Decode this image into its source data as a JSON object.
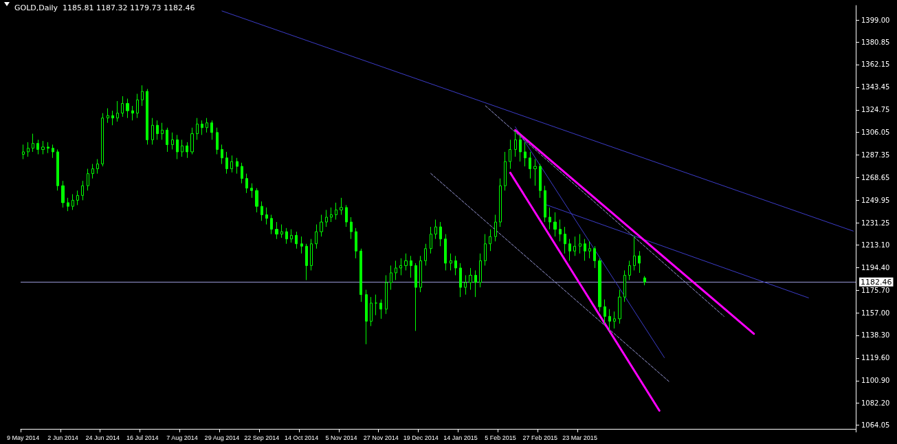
{
  "chart_data": {
    "type": "candlestick",
    "title": "GOLD,Daily  1185.81 1187.32 1179.73 1182.46",
    "categories": [
      "9 May 2014",
      null,
      null,
      null,
      null,
      null,
      null,
      null,
      "2 Jun 2014",
      null,
      null,
      null,
      null,
      null,
      null,
      null,
      "24 Jun 2014",
      null,
      null,
      null,
      null,
      null,
      null,
      null,
      "16 Jul 2014",
      null,
      null,
      null,
      null,
      null,
      null,
      null,
      "7 Aug 2014",
      null,
      null,
      null,
      null,
      null,
      null,
      null,
      "29 Aug 2014",
      null,
      null,
      null,
      null,
      null,
      null,
      null,
      "22 Sep 2014",
      null,
      null,
      null,
      null,
      null,
      null,
      null,
      "14 Oct 2014",
      null,
      null,
      null,
      null,
      null,
      null,
      null,
      "5 Nov 2014",
      null,
      null,
      null,
      null,
      null,
      null,
      null,
      "27 Nov 2014",
      null,
      null,
      null,
      null,
      null,
      null,
      null,
      "19 Dec 2014",
      null,
      null,
      null,
      null,
      null,
      null,
      null,
      "14 Jan 2015",
      null,
      null,
      null,
      null,
      null,
      null,
      null,
      "5 Feb 2015",
      null,
      null,
      null,
      null,
      null,
      null,
      null,
      "27 Feb 2015",
      null,
      null,
      null,
      null,
      null,
      null,
      null,
      "23 Mar 2015",
      null,
      null,
      null,
      null,
      null,
      null,
      null,
      null,
      null,
      null,
      null,
      null,
      null,
      null,
      null,
      null,
      null,
      null,
      null,
      null,
      null,
      null,
      null,
      null,
      null,
      null,
      null,
      null,
      null,
      null,
      null,
      null,
      null,
      null,
      null,
      null,
      null,
      null,
      null,
      null,
      null,
      null,
      null,
      null,
      null,
      null,
      null,
      null,
      null,
      null,
      null,
      null,
      null,
      null,
      null
    ],
    "ohlc": [
      [
        1288,
        1296,
        1284,
        1290
      ],
      [
        1290,
        1298,
        1286,
        1293
      ],
      [
        1293,
        1305,
        1290,
        1297
      ],
      [
        1297,
        1300,
        1288,
        1292
      ],
      [
        1292,
        1299,
        1288,
        1294
      ],
      [
        1294,
        1298,
        1289,
        1293
      ],
      [
        1293,
        1296,
        1285,
        1290
      ],
      [
        1290,
        1292,
        1258,
        1262
      ],
      [
        1262,
        1266,
        1244,
        1248
      ],
      [
        1248,
        1252,
        1241,
        1245
      ],
      [
        1245,
        1255,
        1242,
        1250
      ],
      [
        1250,
        1258,
        1246,
        1254
      ],
      [
        1254,
        1266,
        1250,
        1262
      ],
      [
        1262,
        1276,
        1258,
        1272
      ],
      [
        1272,
        1280,
        1268,
        1276
      ],
      [
        1276,
        1284,
        1272,
        1280
      ],
      [
        1280,
        1322,
        1278,
        1318
      ],
      [
        1318,
        1326,
        1314,
        1320
      ],
      [
        1320,
        1324,
        1312,
        1318
      ],
      [
        1318,
        1332,
        1315,
        1322
      ],
      [
        1322,
        1336,
        1319,
        1330
      ],
      [
        1330,
        1334,
        1318,
        1324
      ],
      [
        1324,
        1328,
        1316,
        1322
      ],
      [
        1322,
        1338,
        1318,
        1333
      ],
      [
        1333,
        1345,
        1328,
        1340
      ],
      [
        1340,
        1342,
        1296,
        1300
      ],
      [
        1300,
        1318,
        1296,
        1312
      ],
      [
        1312,
        1316,
        1300,
        1305
      ],
      [
        1305,
        1314,
        1300,
        1308
      ],
      [
        1308,
        1310,
        1290,
        1296
      ],
      [
        1296,
        1306,
        1292,
        1300
      ],
      [
        1300,
        1304,
        1284,
        1290
      ],
      [
        1290,
        1300,
        1286,
        1295
      ],
      [
        1295,
        1298,
        1285,
        1290
      ],
      [
        1290,
        1310,
        1288,
        1305
      ],
      [
        1305,
        1318,
        1300,
        1313
      ],
      [
        1313,
        1316,
        1304,
        1310
      ],
      [
        1310,
        1318,
        1306,
        1314
      ],
      [
        1314,
        1316,
        1300,
        1306
      ],
      [
        1306,
        1310,
        1288,
        1292
      ],
      [
        1292,
        1296,
        1280,
        1285
      ],
      [
        1285,
        1290,
        1272,
        1276
      ],
      [
        1276,
        1287,
        1273,
        1282
      ],
      [
        1282,
        1285,
        1272,
        1278
      ],
      [
        1278,
        1281,
        1264,
        1268
      ],
      [
        1268,
        1272,
        1256,
        1260
      ],
      [
        1260,
        1264,
        1252,
        1258
      ],
      [
        1258,
        1260,
        1240,
        1245
      ],
      [
        1245,
        1249,
        1233,
        1238
      ],
      [
        1238,
        1244,
        1230,
        1235
      ],
      [
        1235,
        1238,
        1222,
        1226
      ],
      [
        1226,
        1232,
        1218,
        1222
      ],
      [
        1222,
        1230,
        1219,
        1224
      ],
      [
        1224,
        1227,
        1214,
        1218
      ],
      [
        1218,
        1226,
        1215,
        1221
      ],
      [
        1221,
        1224,
        1210,
        1214
      ],
      [
        1214,
        1220,
        1206,
        1212
      ],
      [
        1212,
        1214,
        1184,
        1196
      ],
      [
        1196,
        1218,
        1192,
        1214
      ],
      [
        1214,
        1230,
        1210,
        1224
      ],
      [
        1224,
        1238,
        1220,
        1232
      ],
      [
        1232,
        1242,
        1228,
        1236
      ],
      [
        1236,
        1244,
        1232,
        1238
      ],
      [
        1238,
        1248,
        1234,
        1242
      ],
      [
        1242,
        1252,
        1238,
        1244
      ],
      [
        1244,
        1246,
        1228,
        1232
      ],
      [
        1232,
        1236,
        1218,
        1224
      ],
      [
        1224,
        1227,
        1202,
        1208
      ],
      [
        1208,
        1210,
        1166,
        1172
      ],
      [
        1172,
        1176,
        1131,
        1150
      ],
      [
        1150,
        1170,
        1146,
        1165
      ],
      [
        1165,
        1172,
        1155,
        1165
      ],
      [
        1165,
        1168,
        1152,
        1160
      ],
      [
        1160,
        1188,
        1156,
        1182
      ],
      [
        1182,
        1196,
        1176,
        1190
      ],
      [
        1190,
        1200,
        1184,
        1194
      ],
      [
        1194,
        1202,
        1188,
        1196
      ],
      [
        1196,
        1206,
        1192,
        1200
      ],
      [
        1200,
        1204,
        1186,
        1196
      ],
      [
        1196,
        1198,
        1142,
        1178
      ],
      [
        1178,
        1204,
        1174,
        1200
      ],
      [
        1200,
        1214,
        1196,
        1210
      ],
      [
        1210,
        1228,
        1206,
        1222
      ],
      [
        1222,
        1234,
        1218,
        1228
      ],
      [
        1228,
        1232,
        1212,
        1218
      ],
      [
        1218,
        1222,
        1192,
        1198
      ],
      [
        1198,
        1206,
        1192,
        1200
      ],
      [
        1200,
        1204,
        1188,
        1194
      ],
      [
        1194,
        1198,
        1170,
        1178
      ],
      [
        1178,
        1188,
        1172,
        1182
      ],
      [
        1182,
        1194,
        1176,
        1188
      ],
      [
        1188,
        1192,
        1170,
        1182
      ],
      [
        1182,
        1206,
        1178,
        1200
      ],
      [
        1200,
        1222,
        1196,
        1214
      ],
      [
        1214,
        1226,
        1208,
        1220
      ],
      [
        1220,
        1238,
        1216,
        1232
      ],
      [
        1232,
        1268,
        1228,
        1262
      ],
      [
        1262,
        1290,
        1258,
        1282
      ],
      [
        1282,
        1300,
        1276,
        1292
      ],
      [
        1292,
        1307,
        1286,
        1300
      ],
      [
        1300,
        1304,
        1282,
        1290
      ],
      [
        1290,
        1298,
        1278,
        1285
      ],
      [
        1285,
        1290,
        1268,
        1276
      ],
      [
        1276,
        1284,
        1262,
        1278
      ],
      [
        1278,
        1280,
        1252,
        1258
      ],
      [
        1258,
        1262,
        1232,
        1236
      ],
      [
        1236,
        1244,
        1226,
        1232
      ],
      [
        1232,
        1240,
        1220,
        1226
      ],
      [
        1226,
        1234,
        1216,
        1222
      ],
      [
        1222,
        1228,
        1206,
        1214
      ],
      [
        1214,
        1218,
        1200,
        1208
      ],
      [
        1208,
        1220,
        1204,
        1212
      ],
      [
        1212,
        1222,
        1206,
        1214
      ],
      [
        1214,
        1218,
        1200,
        1208
      ],
      [
        1208,
        1216,
        1202,
        1210
      ],
      [
        1210,
        1212,
        1194,
        1200
      ],
      [
        1200,
        1202,
        1158,
        1162
      ],
      [
        1162,
        1168,
        1148,
        1154
      ],
      [
        1154,
        1160,
        1142,
        1150
      ],
      [
        1150,
        1158,
        1144,
        1152
      ],
      [
        1152,
        1176,
        1148,
        1170
      ],
      [
        1170,
        1192,
        1166,
        1188
      ],
      [
        1188,
        1200,
        1184,
        1196
      ],
      [
        1196,
        1220,
        1192,
        1204
      ],
      [
        1204,
        1208,
        1190,
        1198
      ],
      [
        1185.81,
        1187.32,
        1179.73,
        1182.46
      ],
      null,
      null,
      null,
      null,
      null,
      null,
      null,
      null,
      null,
      null,
      null,
      null,
      null,
      null,
      null,
      null,
      null,
      null,
      null,
      null,
      null,
      null,
      null,
      null,
      null,
      null,
      null,
      null,
      null,
      null,
      null,
      null,
      null,
      null,
      null,
      null,
      null,
      null,
      null,
      null,
      null,
      null
    ],
    "color": "#00ff00",
    "series": [
      {
        "type": "line",
        "color": "#3c3cc8",
        "line_style": "solid",
        "values": [
          null,
          null,
          null,
          null,
          null,
          null,
          null,
          null,
          null,
          null,
          null,
          null,
          null,
          null,
          null,
          null,
          null,
          null,
          null,
          null,
          null,
          null,
          null,
          null,
          null,
          null,
          null,
          null,
          null,
          null,
          null,
          null,
          null,
          null,
          null,
          null,
          null,
          null,
          null,
          null,
          1406.5,
          null,
          null,
          null,
          null,
          null,
          null,
          null,
          null,
          null,
          null,
          null,
          null,
          null,
          null,
          null,
          null,
          null,
          null,
          null,
          null,
          null,
          null,
          null,
          null,
          null,
          null,
          null,
          null,
          null,
          null,
          null,
          null,
          null,
          null,
          null,
          null,
          null,
          null,
          null,
          null,
          null,
          null,
          null,
          null,
          null,
          null,
          null,
          null,
          null,
          null,
          null,
          null,
          null,
          null,
          null,
          null,
          null,
          null,
          null,
          null,
          null,
          null,
          null,
          null,
          null,
          null,
          null,
          null,
          null,
          null,
          null,
          null,
          null,
          null,
          null,
          null,
          null,
          null,
          null,
          null,
          null,
          null,
          null,
          null,
          null,
          null,
          null,
          null,
          null,
          null,
          null,
          null,
          null,
          null,
          null,
          null,
          null,
          null,
          null,
          null,
          null,
          null,
          null,
          null,
          null,
          null,
          null,
          null,
          null,
          null,
          null,
          null,
          null,
          null,
          null,
          null,
          null,
          null,
          null,
          null,
          null,
          null,
          null,
          null,
          null,
          null,
          1224.5
        ]
      },
      {
        "type": "line",
        "color": "#3c3cc8",
        "line_style": "solid",
        "values": [
          null,
          null,
          null,
          null,
          null,
          null,
          null,
          null,
          null,
          null,
          null,
          null,
          null,
          null,
          null,
          null,
          null,
          null,
          null,
          null,
          null,
          null,
          null,
          null,
          null,
          null,
          null,
          null,
          null,
          null,
          null,
          null,
          null,
          null,
          null,
          null,
          null,
          null,
          null,
          null,
          null,
          null,
          null,
          null,
          null,
          null,
          null,
          null,
          null,
          null,
          null,
          null,
          null,
          null,
          null,
          null,
          null,
          null,
          null,
          null,
          null,
          null,
          null,
          null,
          null,
          null,
          null,
          null,
          null,
          null,
          null,
          null,
          null,
          null,
          null,
          null,
          null,
          null,
          null,
          null,
          null,
          null,
          null,
          null,
          null,
          null,
          null,
          null,
          null,
          null,
          null,
          null,
          null,
          null,
          null,
          null,
          null,
          null,
          null,
          null,
          null,
          null,
          null,
          null,
          null,
          1246.6,
          null,
          null,
          null,
          null,
          null,
          null,
          null,
          null,
          null,
          null,
          null,
          null,
          null,
          null,
          null,
          null,
          null,
          null,
          null,
          null,
          null,
          null,
          null,
          null,
          null,
          null,
          null,
          null,
          null,
          null,
          null,
          null,
          null,
          null,
          null,
          null,
          null,
          null,
          null,
          null,
          null,
          null,
          null,
          null,
          null,
          null,
          null,
          null,
          null,
          null,
          null,
          null,
          1169.3,
          null,
          null,
          null,
          null,
          null,
          null,
          null,
          null,
          null
        ]
      },
      {
        "type": "line",
        "color": "#3c3cc8",
        "line_style": "solid",
        "values": [
          null,
          null,
          null,
          null,
          null,
          null,
          null,
          null,
          null,
          null,
          null,
          null,
          null,
          null,
          null,
          null,
          null,
          null,
          null,
          null,
          null,
          null,
          null,
          null,
          null,
          null,
          null,
          null,
          null,
          null,
          null,
          null,
          null,
          null,
          null,
          null,
          null,
          null,
          null,
          null,
          null,
          null,
          null,
          null,
          null,
          null,
          null,
          null,
          null,
          null,
          null,
          null,
          null,
          null,
          null,
          null,
          null,
          null,
          null,
          null,
          null,
          null,
          null,
          null,
          null,
          null,
          null,
          null,
          null,
          null,
          null,
          null,
          null,
          null,
          null,
          null,
          null,
          null,
          null,
          null,
          null,
          null,
          null,
          null,
          null,
          null,
          null,
          null,
          null,
          null,
          null,
          null,
          null,
          null,
          null,
          null,
          null,
          null,
          null,
          1310.7,
          null,
          null,
          null,
          null,
          null,
          null,
          null,
          null,
          null,
          null,
          null,
          null,
          null,
          null,
          null,
          null,
          null,
          null,
          null,
          null,
          null,
          null,
          null,
          null,
          null,
          null,
          null,
          null,
          null,
          1119.9,
          null,
          null,
          null,
          null,
          null,
          null,
          null,
          null,
          null,
          null,
          null,
          null,
          null,
          null,
          null,
          null,
          null,
          null,
          null,
          null,
          null,
          null,
          null,
          null,
          null,
          null,
          null,
          null,
          null,
          null,
          null,
          null,
          null,
          null,
          null,
          null,
          null,
          null
        ]
      },
      {
        "type": "line",
        "color": "#9a9ad8",
        "line_style": "dashed",
        "values": [
          null,
          null,
          null,
          null,
          null,
          null,
          null,
          null,
          null,
          null,
          null,
          null,
          null,
          null,
          null,
          null,
          null,
          null,
          null,
          null,
          null,
          null,
          null,
          null,
          null,
          null,
          null,
          null,
          null,
          null,
          null,
          null,
          null,
          null,
          null,
          null,
          null,
          null,
          null,
          null,
          null,
          null,
          null,
          null,
          null,
          null,
          null,
          null,
          null,
          null,
          null,
          null,
          null,
          null,
          null,
          null,
          null,
          null,
          null,
          null,
          null,
          null,
          null,
          null,
          null,
          null,
          null,
          null,
          null,
          null,
          null,
          null,
          null,
          null,
          null,
          null,
          null,
          null,
          null,
          null,
          null,
          null,
          null,
          null,
          null,
          null,
          null,
          null,
          null,
          null,
          null,
          null,
          null,
          1328.1,
          null,
          null,
          null,
          null,
          null,
          null,
          null,
          null,
          null,
          null,
          null,
          null,
          null,
          null,
          null,
          null,
          null,
          null,
          null,
          null,
          null,
          null,
          null,
          null,
          null,
          null,
          null,
          null,
          null,
          null,
          null,
          null,
          null,
          null,
          null,
          null,
          null,
          null,
          null,
          null,
          null,
          null,
          null,
          null,
          null,
          null,
          null,
          1154.0,
          null,
          null,
          null,
          null,
          null,
          null,
          null,
          null,
          null,
          null,
          null,
          null,
          null,
          null,
          null,
          null,
          null,
          null,
          null,
          null,
          null,
          null,
          null,
          null,
          null,
          null
        ]
      },
      {
        "type": "line",
        "color": "#9a9ad8",
        "line_style": "dashed",
        "values": [
          null,
          null,
          null,
          null,
          null,
          null,
          null,
          null,
          null,
          null,
          null,
          null,
          null,
          null,
          null,
          null,
          null,
          null,
          null,
          null,
          null,
          null,
          null,
          null,
          null,
          null,
          null,
          null,
          null,
          null,
          null,
          null,
          null,
          null,
          null,
          null,
          null,
          null,
          null,
          null,
          null,
          null,
          null,
          null,
          null,
          null,
          null,
          null,
          null,
          null,
          null,
          null,
          null,
          null,
          null,
          null,
          null,
          null,
          null,
          null,
          null,
          null,
          null,
          null,
          null,
          null,
          null,
          null,
          null,
          null,
          null,
          null,
          null,
          null,
          null,
          null,
          null,
          null,
          null,
          null,
          null,
          null,
          1272.2,
          null,
          null,
          null,
          null,
          null,
          null,
          null,
          null,
          null,
          null,
          null,
          null,
          null,
          null,
          null,
          null,
          null,
          null,
          null,
          null,
          null,
          null,
          null,
          null,
          null,
          null,
          null,
          null,
          null,
          null,
          null,
          null,
          null,
          null,
          null,
          null,
          null,
          null,
          null,
          null,
          null,
          null,
          null,
          null,
          null,
          null,
          null,
          1099.9,
          null,
          null,
          null,
          null,
          null,
          null,
          null,
          null,
          null,
          null,
          null,
          null,
          null,
          null,
          null,
          null,
          null,
          null,
          null,
          null,
          null,
          null,
          null,
          null,
          null,
          null,
          null,
          null,
          null,
          null,
          null,
          null,
          null,
          null,
          null,
          null,
          null
        ]
      },
      {
        "type": "line",
        "color": "#ff00ff",
        "line_style": "solid",
        "values": [
          null,
          null,
          null,
          null,
          null,
          null,
          null,
          null,
          null,
          null,
          null,
          null,
          null,
          null,
          null,
          null,
          null,
          null,
          null,
          null,
          null,
          null,
          null,
          null,
          null,
          null,
          null,
          null,
          null,
          null,
          null,
          null,
          null,
          null,
          null,
          null,
          null,
          null,
          null,
          null,
          null,
          null,
          null,
          null,
          null,
          null,
          null,
          null,
          null,
          null,
          null,
          null,
          null,
          null,
          null,
          null,
          null,
          null,
          null,
          null,
          null,
          null,
          null,
          null,
          null,
          null,
          null,
          null,
          null,
          null,
          null,
          null,
          null,
          null,
          null,
          null,
          null,
          null,
          null,
          null,
          null,
          null,
          null,
          null,
          null,
          null,
          null,
          null,
          null,
          null,
          null,
          null,
          null,
          null,
          null,
          null,
          null,
          null,
          null,
          1307.9,
          null,
          null,
          null,
          null,
          null,
          null,
          null,
          null,
          null,
          null,
          null,
          null,
          null,
          null,
          null,
          null,
          null,
          null,
          null,
          null,
          null,
          null,
          null,
          null,
          null,
          null,
          null,
          null,
          null,
          null,
          null,
          null,
          null,
          null,
          null,
          null,
          null,
          null,
          null,
          null,
          null,
          null,
          null,
          null,
          null,
          null,
          null,
          1139.6,
          null,
          null,
          null,
          null,
          null,
          null,
          null,
          null,
          null,
          null,
          null,
          null,
          null,
          null,
          null,
          null,
          null,
          null,
          null,
          null
        ]
      },
      {
        "type": "line",
        "color": "#ff00ff",
        "line_style": "solid",
        "values": [
          null,
          null,
          null,
          null,
          null,
          null,
          null,
          null,
          null,
          null,
          null,
          null,
          null,
          null,
          null,
          null,
          null,
          null,
          null,
          null,
          null,
          null,
          null,
          null,
          null,
          null,
          null,
          null,
          null,
          null,
          null,
          null,
          null,
          null,
          null,
          null,
          null,
          null,
          null,
          null,
          null,
          null,
          null,
          null,
          null,
          null,
          null,
          null,
          null,
          null,
          null,
          null,
          null,
          null,
          null,
          null,
          null,
          null,
          null,
          null,
          null,
          null,
          null,
          null,
          null,
          null,
          null,
          null,
          null,
          null,
          null,
          null,
          null,
          null,
          null,
          null,
          null,
          null,
          null,
          null,
          null,
          null,
          null,
          null,
          null,
          null,
          null,
          null,
          null,
          null,
          null,
          null,
          null,
          null,
          null,
          null,
          null,
          null,
          1272.7,
          null,
          null,
          null,
          null,
          null,
          null,
          null,
          null,
          null,
          null,
          null,
          null,
          null,
          null,
          null,
          null,
          null,
          null,
          null,
          null,
          null,
          null,
          null,
          null,
          null,
          null,
          null,
          null,
          null,
          1076.1,
          null,
          null,
          null,
          null,
          null,
          null,
          null,
          null,
          null,
          null,
          null,
          null,
          null,
          null,
          null,
          null,
          null,
          null,
          null,
          null,
          null,
          null,
          null,
          null,
          null,
          null,
          null,
          null,
          null,
          null,
          null,
          null,
          null,
          null,
          null,
          null,
          null,
          null,
          null
        ]
      }
    ],
    "marker": "none",
    "ylim": [
      1061,
      1411
    ],
    "yticks": [
      {
        "value": 1064.05,
        "label": "1064.05"
      },
      {
        "value": 1082.2,
        "label": "1082.20"
      },
      {
        "value": 1100.9,
        "label": "1100.90"
      },
      {
        "value": 1119.6,
        "label": "1119.60"
      },
      {
        "value": 1138.3,
        "label": "1138.30"
      },
      {
        "value": 1157,
        "label": "1157.00"
      },
      {
        "value": 1175.7,
        "label": "1175.70"
      },
      {
        "value": 1194.4,
        "label": "1194.40"
      },
      {
        "value": 1213.1,
        "label": "1213.10"
      },
      {
        "value": 1231.25,
        "label": "1231.25"
      },
      {
        "value": 1249.95,
        "label": "1249.95"
      },
      {
        "value": 1268.65,
        "label": "1268.65"
      },
      {
        "value": 1287.35,
        "label": "1287.35"
      },
      {
        "value": 1306.05,
        "label": "1306.05"
      },
      {
        "value": 1324.75,
        "label": "1324.75"
      },
      {
        "value": 1343.45,
        "label": "1343.45"
      },
      {
        "value": 1362.15,
        "label": "1362.15"
      },
      {
        "value": 1380.85,
        "label": "1380.85"
      },
      {
        "value": 1399,
        "label": "1399.00"
      }
    ],
    "ref_lines": [
      {
        "axis": "y",
        "value": 1182.46,
        "label": "1182.46",
        "color": "#9a9ad8"
      }
    ],
    "grid": false
  }
}
